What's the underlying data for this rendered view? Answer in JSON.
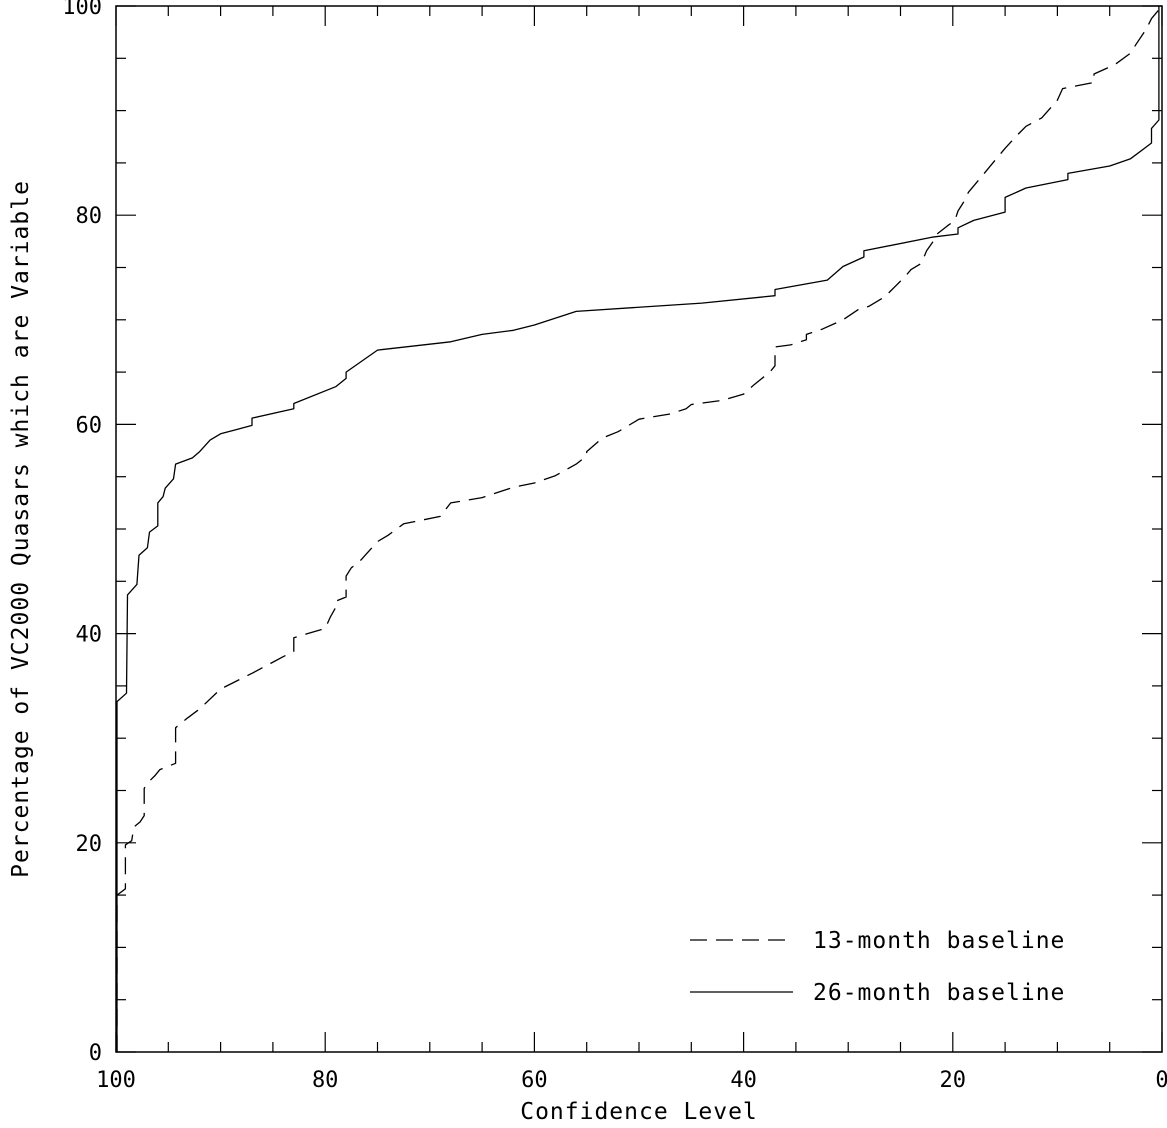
{
  "chart_data": {
    "type": "line",
    "title": "",
    "xlabel": "Confidence Level",
    "ylabel": "Percentage of VC2000 Quasars which are Variable",
    "xlim": [
      100,
      0
    ],
    "ylim": [
      0,
      100
    ],
    "x_reversed": true,
    "x_ticks": [
      100,
      80,
      60,
      40,
      20,
      0
    ],
    "y_ticks": [
      0,
      20,
      40,
      60,
      80,
      100
    ],
    "grid": false,
    "legend_position": "bottom-right",
    "series": [
      {
        "name": "13-month baseline",
        "style": "dashed",
        "color": "#000000",
        "points": [
          [
            99.9,
            0
          ],
          [
            99.9,
            15
          ],
          [
            99.1,
            15.6
          ],
          [
            99.1,
            19.8
          ],
          [
            98.5,
            20.2
          ],
          [
            98.3,
            21.5
          ],
          [
            97.7,
            22.0
          ],
          [
            97.3,
            22.6
          ],
          [
            97.3,
            25.2
          ],
          [
            96.9,
            25.8
          ],
          [
            96.3,
            26.4
          ],
          [
            95.8,
            27.0
          ],
          [
            94.3,
            27.6
          ],
          [
            94.3,
            31.0
          ],
          [
            93.2,
            31.9
          ],
          [
            92,
            32.8
          ],
          [
            90,
            34.7
          ],
          [
            87,
            36.2
          ],
          [
            84,
            37.8
          ],
          [
            83,
            38.3
          ],
          [
            83,
            39.6
          ],
          [
            82,
            39.9
          ],
          [
            80,
            40.5
          ],
          [
            79.5,
            41.6
          ],
          [
            79,
            42.5
          ],
          [
            79,
            43.1
          ],
          [
            78,
            43.5
          ],
          [
            78,
            45.5
          ],
          [
            77.5,
            46.3
          ],
          [
            76.8,
            46.8
          ],
          [
            75,
            48.8
          ],
          [
            74,
            49.4
          ],
          [
            72.5,
            50.5
          ],
          [
            69,
            51.2
          ],
          [
            68,
            52.5
          ],
          [
            65,
            53.0
          ],
          [
            62,
            54.0
          ],
          [
            60,
            54.4
          ],
          [
            58,
            55.1
          ],
          [
            56,
            56.2
          ],
          [
            55,
            57.0
          ],
          [
            55,
            57.4
          ],
          [
            53.5,
            58.7
          ],
          [
            52,
            59.3
          ],
          [
            50,
            60.5
          ],
          [
            47,
            61.0
          ],
          [
            45.5,
            61.5
          ],
          [
            45,
            61.9
          ],
          [
            42,
            62.3
          ],
          [
            40,
            62.9
          ],
          [
            39,
            63.8
          ],
          [
            37.5,
            65.0
          ],
          [
            37,
            65.6
          ],
          [
            37,
            67.4
          ],
          [
            35.5,
            67.6
          ],
          [
            34,
            68.1
          ],
          [
            34,
            68.6
          ],
          [
            32.5,
            69.1
          ],
          [
            30.5,
            70.0
          ],
          [
            29,
            71.0
          ],
          [
            28,
            71.3
          ],
          [
            26.5,
            72.2
          ],
          [
            25.5,
            73.2
          ],
          [
            24.5,
            74.2
          ],
          [
            24,
            74.8
          ],
          [
            23,
            75.4
          ],
          [
            22.5,
            76.6
          ],
          [
            21.8,
            77.6
          ],
          [
            21.5,
            78.2
          ],
          [
            20.5,
            79.0
          ],
          [
            19.8,
            79.5
          ],
          [
            19.5,
            80.4
          ],
          [
            19,
            81.2
          ],
          [
            18.5,
            82.2
          ],
          [
            17,
            84.0
          ],
          [
            16,
            85.2
          ],
          [
            15,
            86.4
          ],
          [
            14,
            87.5
          ],
          [
            13,
            88.5
          ],
          [
            11.5,
            89.3
          ],
          [
            10,
            91.0
          ],
          [
            9.5,
            92.1
          ],
          [
            8,
            92.4
          ],
          [
            6.5,
            92.7
          ],
          [
            6.5,
            93.5
          ],
          [
            4.5,
            94.4
          ],
          [
            3,
            95.5
          ],
          [
            2.5,
            96.3
          ],
          [
            1.5,
            97.8
          ],
          [
            1,
            98.8
          ],
          [
            0,
            100
          ]
        ]
      },
      {
        "name": "26-month baseline",
        "style": "solid",
        "color": "#000000",
        "points": [
          [
            99.9,
            0
          ],
          [
            99.9,
            33.5
          ],
          [
            99.0,
            34.3
          ],
          [
            98.9,
            43.7
          ],
          [
            98,
            44.7
          ],
          [
            97.8,
            47.5
          ],
          [
            97,
            48.2
          ],
          [
            96.8,
            49.7
          ],
          [
            96,
            50.3
          ],
          [
            96,
            52.5
          ],
          [
            95.5,
            53.1
          ],
          [
            95.3,
            53.9
          ],
          [
            94.5,
            54.8
          ],
          [
            94.3,
            56.2
          ],
          [
            92.7,
            56.8
          ],
          [
            92,
            57.4
          ],
          [
            91,
            58.5
          ],
          [
            90,
            59.1
          ],
          [
            88.5,
            59.5
          ],
          [
            87,
            59.9
          ],
          [
            87,
            60.6
          ],
          [
            83,
            61.5
          ],
          [
            83,
            62.0
          ],
          [
            79,
            63.6
          ],
          [
            78,
            64.4
          ],
          [
            78,
            65.0
          ],
          [
            75,
            67.1
          ],
          [
            68,
            67.9
          ],
          [
            65,
            68.6
          ],
          [
            62,
            69.0
          ],
          [
            60,
            69.5
          ],
          [
            56,
            70.8
          ],
          [
            44,
            71.6
          ],
          [
            37,
            72.3
          ],
          [
            37,
            72.9
          ],
          [
            32,
            73.8
          ],
          [
            30.5,
            75.1
          ],
          [
            28.5,
            76.0
          ],
          [
            28.5,
            76.6
          ],
          [
            22,
            77.9
          ],
          [
            19.5,
            78.2
          ],
          [
            19.5,
            78.8
          ],
          [
            18,
            79.5
          ],
          [
            15,
            80.3
          ],
          [
            15,
            81.7
          ],
          [
            13,
            82.6
          ],
          [
            9,
            83.4
          ],
          [
            9,
            84.0
          ],
          [
            5,
            84.7
          ],
          [
            3,
            85.4
          ],
          [
            1,
            86.9
          ],
          [
            1,
            88.3
          ],
          [
            0.3,
            89.1
          ],
          [
            0.3,
            100
          ]
        ]
      }
    ]
  }
}
